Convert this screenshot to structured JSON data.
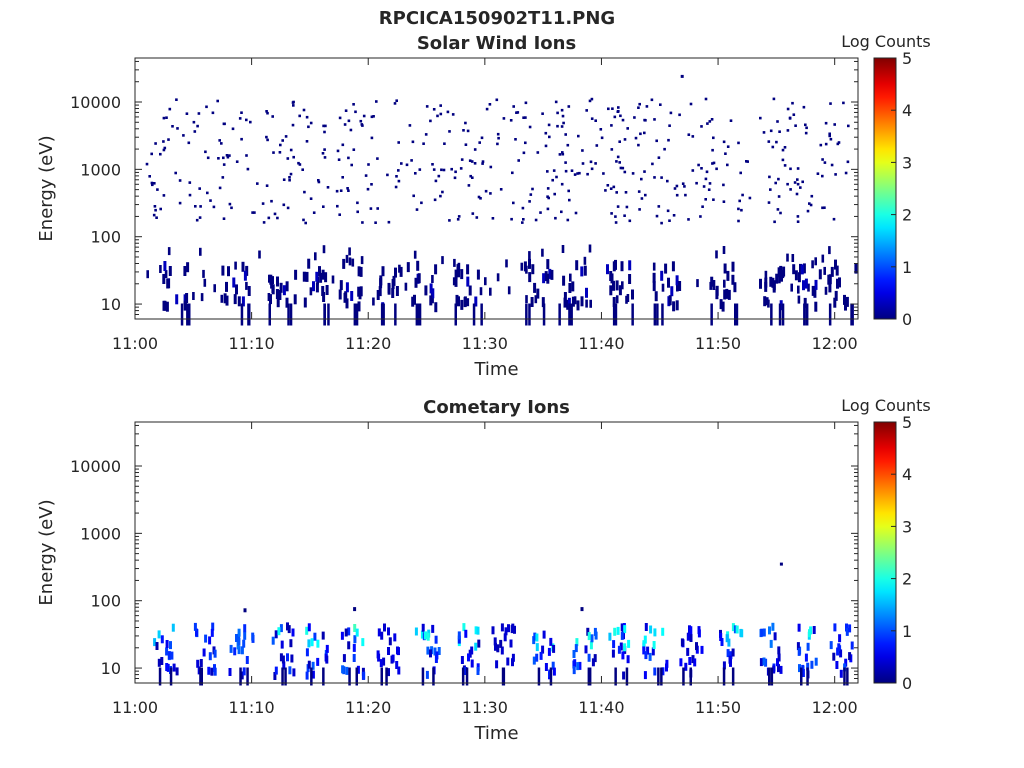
{
  "figure": {
    "title": "RPCICA150902T11.PNG"
  },
  "chart_data": [
    {
      "type": "heatmap",
      "title": "Solar Wind Ions",
      "xlabel": "Time",
      "ylabel": "Energy (eV)",
      "xticks": [
        "11:00",
        "11:10",
        "11:20",
        "11:30",
        "11:40",
        "11:50",
        "12:00"
      ],
      "xlim_minutes": [
        0,
        62
      ],
      "yscale": "log",
      "ylim": [
        6,
        45000
      ],
      "yticks": [
        10,
        100,
        1000,
        10000
      ],
      "ytick_labels": [
        "10",
        "100",
        "1000",
        "10000"
      ],
      "colorbar": {
        "label": "Log Counts",
        "ticks": [
          "0",
          "1",
          "2",
          "3",
          "4",
          "5"
        ],
        "range": [
          0,
          5
        ],
        "colormap": "jet"
      },
      "description": "Sparse isolated single-count pixels scattered from ~150 eV to ~15000 eV; denser low-count streaks below ~60 eV; all values near log counts 0 (dark blue).",
      "dense_clusters_minutes": [
        3.5,
        8.5,
        12.5,
        15.5,
        18.5,
        21.5,
        24.5,
        28.5,
        34.5,
        37.5,
        41.5,
        45.5,
        50.5,
        54.5,
        57.5,
        60.5
      ],
      "outliers": [
        {
          "t_min": 46.8,
          "energy_ev": 24000,
          "log_counts": 0
        }
      ]
    },
    {
      "type": "heatmap",
      "title": "Cometary Ions",
      "xlabel": "Time",
      "ylabel": "Energy (eV)",
      "xticks": [
        "11:00",
        "11:10",
        "11:20",
        "11:30",
        "11:40",
        "11:50",
        "12:00"
      ],
      "xlim_minutes": [
        0,
        62
      ],
      "yscale": "log",
      "ylim": [
        6,
        45000
      ],
      "yticks": [
        10,
        100,
        1000,
        10000
      ],
      "ytick_labels": [
        "10",
        "100",
        "1000",
        "10000"
      ],
      "colorbar": {
        "label": "Log Counts",
        "ticks": [
          "0",
          "1",
          "2",
          "3",
          "4",
          "5"
        ],
        "range": [
          0,
          5
        ],
        "colormap": "jet"
      },
      "description": "Periodic bursts of cometary ions between ~7 eV and ~70 eV, peak log counts ~2 (cyan) near 25-40 eV.",
      "bursts": [
        {
          "t_min": 2.5,
          "peak_log_counts": 1.8
        },
        {
          "t_min": 6.0,
          "peak_log_counts": 1.0
        },
        {
          "t_min": 9.0,
          "peak_log_counts": 1.2
        },
        {
          "t_min": 12.5,
          "peak_log_counts": 2.0
        },
        {
          "t_min": 15.5,
          "peak_log_counts": 2.0
        },
        {
          "t_min": 18.5,
          "peak_log_counts": 2.2
        },
        {
          "t_min": 21.5,
          "peak_log_counts": 0.5
        },
        {
          "t_min": 25.0,
          "peak_log_counts": 2.0
        },
        {
          "t_min": 28.5,
          "peak_log_counts": 2.0
        },
        {
          "t_min": 31.5,
          "peak_log_counts": 0.4
        },
        {
          "t_min": 35.0,
          "peak_log_counts": 2.0
        },
        {
          "t_min": 38.5,
          "peak_log_counts": 2.0
        },
        {
          "t_min": 41.5,
          "peak_log_counts": 2.0
        },
        {
          "t_min": 44.5,
          "peak_log_counts": 2.0
        },
        {
          "t_min": 47.5,
          "peak_log_counts": 0.6
        },
        {
          "t_min": 51.0,
          "peak_log_counts": 2.0
        },
        {
          "t_min": 54.5,
          "peak_log_counts": 1.2
        },
        {
          "t_min": 57.5,
          "peak_log_counts": 2.0
        },
        {
          "t_min": 60.5,
          "peak_log_counts": 1.0
        }
      ],
      "outliers": [
        {
          "t_min": 55.3,
          "energy_ev": 350,
          "log_counts": 0
        }
      ]
    }
  ]
}
